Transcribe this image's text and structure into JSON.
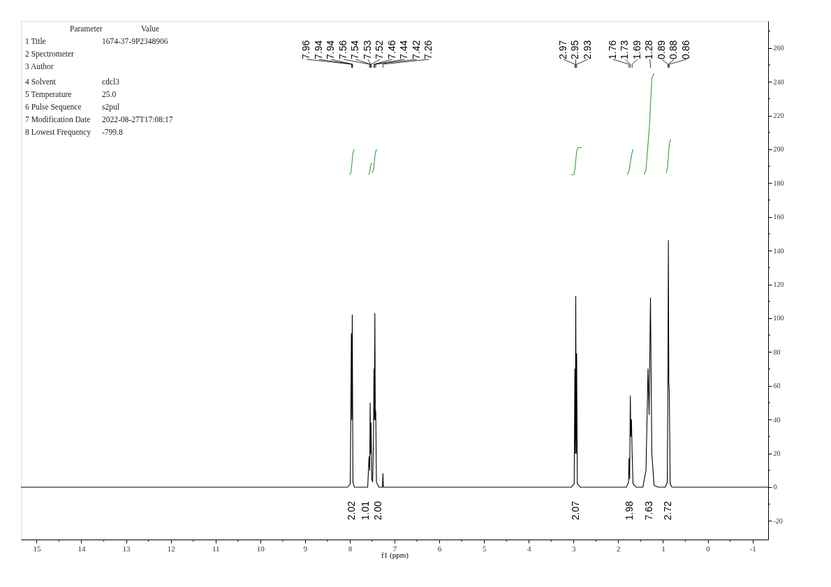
{
  "chart_data": {
    "type": "line",
    "xlabel": "f1 (ppm)",
    "xlim": [
      15.35,
      -1.35
    ],
    "xticks": [
      15,
      {
        "value": 14.5,
        "label": null
      },
      14,
      {
        "value": 13.5,
        "label": null
      },
      13,
      {
        "value": 12.5,
        "label": null
      },
      12,
      {
        "value": 11.5,
        "label": null
      },
      11,
      {
        "value": 10.5,
        "label": null
      },
      10,
      {
        "value": 9.5,
        "label": null
      },
      9,
      {
        "value": 8.5,
        "label": null
      },
      8,
      {
        "value": 7.5,
        "label": null
      },
      7,
      {
        "value": 6.5,
        "label": null
      },
      6,
      {
        "value": 5.5,
        "label": null
      },
      5,
      {
        "value": 4.5,
        "label": null
      },
      4,
      {
        "value": 3.5,
        "label": null
      },
      3,
      {
        "value": 2.5,
        "label": null
      },
      2,
      {
        "value": 1.5,
        "label": null
      },
      1,
      {
        "value": 0.5,
        "label": null
      },
      0,
      {
        "value": -0.5,
        "label": null
      },
      -1
    ],
    "ylim": [
      -31,
      276
    ],
    "yticks": [
      -20,
      {
        "value": -10,
        "label": null
      },
      0,
      {
        "value": 10,
        "label": null
      },
      20,
      {
        "value": 30,
        "label": null
      },
      40,
      {
        "value": 50,
        "label": null
      },
      60,
      {
        "value": 70,
        "label": null
      },
      80,
      {
        "value": 90,
        "label": null
      },
      100,
      {
        "value": 110,
        "label": null
      },
      120,
      {
        "value": 130,
        "label": null
      },
      140,
      {
        "value": 150,
        "label": null
      },
      160,
      {
        "value": 170,
        "label": null
      },
      180,
      {
        "value": 190,
        "label": null
      },
      200,
      {
        "value": 210,
        "label": null
      },
      220,
      {
        "value": 230,
        "label": null
      },
      240,
      {
        "value": 250,
        "label": null
      },
      260,
      {
        "value": 270,
        "label": null
      }
    ],
    "grid": false,
    "series": [
      {
        "color": "#000000",
        "x": [
          15.35,
          8.05,
          7.99,
          7.965,
          7.955,
          7.945,
          7.93,
          7.9,
          7.6,
          7.57,
          7.555,
          7.545,
          7.535,
          7.525,
          7.51,
          7.49,
          7.47,
          7.46,
          7.45,
          7.44,
          7.43,
          7.42,
          7.405,
          7.35,
          7.27,
          7.26,
          7.25,
          3.05,
          2.985,
          2.97,
          2.96,
          2.95,
          2.94,
          2.93,
          2.915,
          2.85,
          1.82,
          1.77,
          1.76,
          1.745,
          1.73,
          1.72,
          1.705,
          1.69,
          1.67,
          1.6,
          1.45,
          1.38,
          1.335,
          1.31,
          1.28,
          1.25,
          1.2,
          1.1,
          0.95,
          0.905,
          0.89,
          0.88,
          0.87,
          0.86,
          0.84,
          0.8,
          -1.35
        ],
        "values": [
          0,
          0,
          2,
          91,
          40,
          102,
          3,
          0,
          0,
          18,
          10,
          50,
          20,
          38,
          5,
          3,
          30,
          70,
          40,
          103,
          40,
          45,
          3,
          0,
          0,
          8,
          0,
          0,
          2,
          70,
          20,
          113,
          20,
          79,
          2,
          0,
          0,
          3,
          17,
          5,
          54,
          30,
          40,
          20,
          2,
          0,
          0,
          10,
          70,
          43,
          112,
          20,
          1,
          0,
          0,
          3,
          61,
          146,
          62,
          58,
          2,
          0,
          0
        ]
      },
      {
        "color": "#3c9a3c",
        "x": [
          8.0,
          7.97,
          7.93,
          7.9
        ],
        "values": [
          185,
          187,
          198,
          200
        ]
      },
      {
        "color": "#3c9a3c",
        "x": [
          7.58,
          7.56,
          7.53,
          7.51
        ],
        "values": [
          185,
          186,
          191,
          192
        ]
      },
      {
        "color": "#3c9a3c",
        "x": [
          7.5,
          7.47,
          7.43,
          7.4
        ],
        "values": [
          186,
          188,
          198,
          200
        ]
      },
      {
        "color": "#3c9a3c",
        "x": [
          3.06,
          2.99,
          2.97,
          2.93,
          2.9,
          2.82
        ],
        "values": [
          185,
          185,
          188,
          199,
          201,
          201
        ]
      },
      {
        "color": "#3c9a3c",
        "x": [
          1.8,
          1.76,
          1.7,
          1.67
        ],
        "values": [
          185,
          187,
          197,
          200
        ]
      },
      {
        "color": "#3c9a3c",
        "x": [
          1.42,
          1.38,
          1.3,
          1.25,
          1.2
        ],
        "values": [
          185,
          188,
          215,
          242,
          245
        ]
      },
      {
        "color": "#3c9a3c",
        "x": [
          0.93,
          0.9,
          0.86,
          0.83
        ],
        "values": [
          186,
          189,
          203,
          206
        ]
      }
    ],
    "annotations": [
      "Parameter\tValue",
      "1 Title\t1674-37-9P2348906",
      "2 Spectrometer",
      "3 Author",
      "4 Solvent\tcdcl3",
      "5 Temperature\t25.0",
      "6 Pulse Sequence\ts2pul",
      "7 Modification Date\t2022-08-27T17:08:17",
      "8 Lowest Frequency\t-799.8",
      {
        "text": "7.96",
        "x": 7.96
      },
      {
        "text": "7.94",
        "x": 7.94
      },
      {
        "text": "7.94",
        "x": 7.94
      },
      {
        "text": "7.56",
        "x": 7.56
      },
      {
        "text": "7.54",
        "x": 7.54
      },
      {
        "text": "7.53",
        "x": 7.53
      },
      {
        "text": "7.52",
        "x": 7.52
      },
      {
        "text": "7.46",
        "x": 7.46
      },
      {
        "text": "7.44",
        "x": 7.44
      },
      {
        "text": "7.42",
        "x": 7.42
      },
      {
        "text": "7.26",
        "x": 7.26
      },
      {
        "text": "2.97",
        "x": 2.97
      },
      {
        "text": "2.95",
        "x": 2.95
      },
      {
        "text": "2.93",
        "x": 2.93
      },
      {
        "text": "1.76",
        "x": 1.76
      },
      {
        "text": "1.73",
        "x": 1.73
      },
      {
        "text": "1.69",
        "x": 1.69
      },
      {
        "text": "1.28",
        "x": 1.28
      },
      {
        "text": "0.89",
        "x": 0.89
      },
      {
        "text": "0.88",
        "x": 0.88
      },
      {
        "text": "0.86",
        "x": 0.86
      },
      "2.02",
      "1.01",
      "2.00",
      "2.07",
      "1.98",
      "7.63",
      "2.72"
    ]
  }
}
